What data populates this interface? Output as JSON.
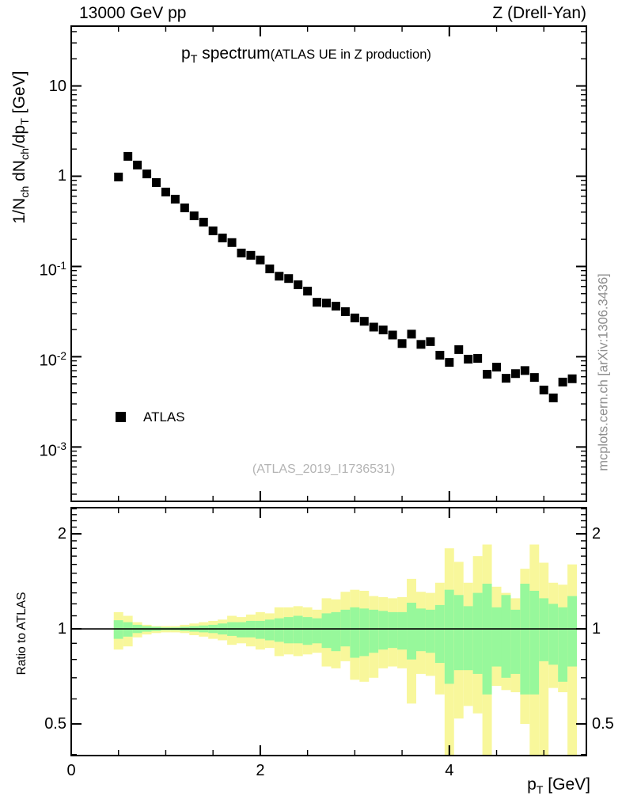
{
  "header": {
    "left": "13000 GeV pp",
    "right": "Z (Drell-Yan)"
  },
  "title": {
    "main": "p_{T} spectrum",
    "paren": "(ATLAS UE in Z production)"
  },
  "watermarks": {
    "side": "mcplots.cern.ch [arXiv:1306.3436]",
    "dataset": "(ATLAS_2019_I1736531)"
  },
  "legend": {
    "entries": [
      {
        "label": "ATLAS",
        "marker": "filled-square",
        "color": "#000000"
      }
    ]
  },
  "colors": {
    "axis": "#000000",
    "marker": "#000000",
    "band_outer": "#f8f79b",
    "band_inner": "#97f89b",
    "watermark": "#8e8e8e",
    "dataset_text": "#b4b4b4"
  },
  "chart_data": {
    "type": "scatter",
    "description": "HEP pT spectrum (log y) with MC/data ratio sub-panel showing uncertainty bands",
    "xlabel": "p_{T} [GeV]",
    "main_panel": {
      "ylabel": "1/N_{ch} dN_{ch}/dp_{T} [GeV]",
      "yscale": "log",
      "ylim": [
        0.00025,
        46.0
      ],
      "xlim": [
        0,
        5.45
      ],
      "yticks": [
        {
          "v": 10,
          "label": "10"
        },
        {
          "v": 1,
          "label": "1"
        },
        {
          "v": 0.1,
          "label": "10^{-1}"
        },
        {
          "v": 0.01,
          "label": "10^{-2}"
        },
        {
          "v": 0.001,
          "label": "10^{-3}"
        }
      ],
      "xticks": [
        {
          "v": 0,
          "label": "0"
        },
        {
          "v": 2,
          "label": "2"
        },
        {
          "v": 4,
          "label": "4"
        }
      ],
      "x_minor_ticks": [
        0.5,
        1.0,
        1.5,
        2.5,
        3.0,
        3.5,
        4.5,
        5.0
      ],
      "series": [
        {
          "name": "ATLAS",
          "marker": "filled-square",
          "color": "#000000",
          "x": [
            0.5,
            0.6,
            0.7,
            0.8,
            0.9,
            1.0,
            1.1,
            1.2,
            1.3,
            1.4,
            1.5,
            1.6,
            1.7,
            1.8,
            1.9,
            2.0,
            2.1,
            2.2,
            2.3,
            2.4,
            2.5,
            2.6,
            2.7,
            2.8,
            2.9,
            3.0,
            3.1,
            3.2,
            3.3,
            3.4,
            3.5,
            3.6,
            3.7,
            3.8,
            3.9,
            4.0,
            4.1,
            4.2,
            4.3,
            4.4,
            4.5,
            4.6,
            4.7,
            4.8,
            4.9,
            5.0,
            5.1,
            5.2,
            5.3
          ],
          "y": [
            0.98,
            1.66,
            1.33,
            1.06,
            0.851,
            0.668,
            0.557,
            0.446,
            0.364,
            0.31,
            0.248,
            0.207,
            0.184,
            0.141,
            0.133,
            0.118,
            0.094,
            0.078,
            0.0735,
            0.0627,
            0.0533,
            0.0401,
            0.0393,
            0.0363,
            0.0316,
            0.0269,
            0.0247,
            0.0213,
            0.0198,
            0.0174,
            0.014,
            0.0178,
            0.0137,
            0.0147,
            0.0104,
            0.00865,
            0.012,
            0.0094,
            0.00959,
            0.0064,
            0.00767,
            0.00577,
            0.0065,
            0.00703,
            0.00589,
            0.00428,
            0.0035,
            0.00524,
            0.0057
          ]
        }
      ]
    },
    "ratio_panel": {
      "ylabel": "Ratio to ATLAS",
      "yscale": "log",
      "ylim": [
        0.397,
        2.42
      ],
      "yticks": [
        {
          "v": 2,
          "label": "2"
        },
        {
          "v": 1,
          "label": "1"
        },
        {
          "v": 0.5,
          "label": "0.5"
        }
      ],
      "y_minor_ticks": [
        0.4,
        0.6,
        0.7,
        0.8,
        0.9,
        1.1,
        1.2,
        1.3,
        1.4,
        1.5,
        1.6,
        1.7,
        1.8,
        1.9,
        2.1,
        2.2,
        2.3,
        2.4
      ],
      "ref_line": 1,
      "bins_x_start": 0.45,
      "bin_width": 0.1,
      "bands": {
        "outer": {
          "hi": [
            1.13,
            1.1,
            1.05,
            1.03,
            1.02,
            1.02,
            1.02,
            1.03,
            1.04,
            1.05,
            1.06,
            1.07,
            1.1,
            1.09,
            1.11,
            1.13,
            1.12,
            1.17,
            1.17,
            1.18,
            1.17,
            1.15,
            1.25,
            1.24,
            1.31,
            1.33,
            1.32,
            1.27,
            1.26,
            1.25,
            1.26,
            1.44,
            1.31,
            1.3,
            1.4,
            1.8,
            1.63,
            1.4,
            1.7,
            1.85,
            1.36,
            1.3,
            1.25,
            1.55,
            1.85,
            1.62,
            1.4,
            1.38,
            1.6
          ],
          "lo": [
            0.86,
            0.88,
            0.94,
            0.96,
            0.97,
            0.975,
            0.975,
            0.97,
            0.955,
            0.945,
            0.93,
            0.92,
            0.89,
            0.9,
            0.88,
            0.86,
            0.87,
            0.82,
            0.83,
            0.82,
            0.83,
            0.84,
            0.76,
            0.75,
            0.79,
            0.69,
            0.68,
            0.7,
            0.75,
            0.76,
            0.75,
            0.58,
            0.72,
            0.71,
            0.62,
            0.38,
            0.52,
            0.57,
            0.54,
            0.38,
            0.66,
            0.64,
            0.63,
            0.5,
            0.38,
            0.38,
            0.65,
            0.63,
            0.38
          ]
        },
        "inner": {
          "hi": [
            1.065,
            1.05,
            1.03,
            1.02,
            1.015,
            1.01,
            1.01,
            1.015,
            1.02,
            1.025,
            1.03,
            1.04,
            1.05,
            1.05,
            1.06,
            1.06,
            1.07,
            1.08,
            1.09,
            1.1,
            1.09,
            1.08,
            1.12,
            1.13,
            1.15,
            1.17,
            1.16,
            1.15,
            1.14,
            1.13,
            1.13,
            1.21,
            1.16,
            1.15,
            1.19,
            1.33,
            1.28,
            1.18,
            1.3,
            1.39,
            1.17,
            1.28,
            1.15,
            1.39,
            1.32,
            1.25,
            1.2,
            1.17,
            1.27
          ],
          "lo": [
            0.93,
            0.945,
            0.97,
            0.98,
            0.985,
            0.99,
            0.99,
            0.985,
            0.98,
            0.975,
            0.97,
            0.96,
            0.95,
            0.94,
            0.94,
            0.93,
            0.92,
            0.91,
            0.9,
            0.9,
            0.89,
            0.9,
            0.87,
            0.85,
            0.88,
            0.81,
            0.82,
            0.84,
            0.86,
            0.87,
            0.86,
            0.8,
            0.85,
            0.84,
            0.78,
            0.67,
            0.74,
            0.74,
            0.72,
            0.62,
            0.76,
            0.7,
            0.72,
            0.62,
            0.62,
            0.79,
            0.77,
            0.68,
            0.76
          ]
        }
      }
    }
  }
}
